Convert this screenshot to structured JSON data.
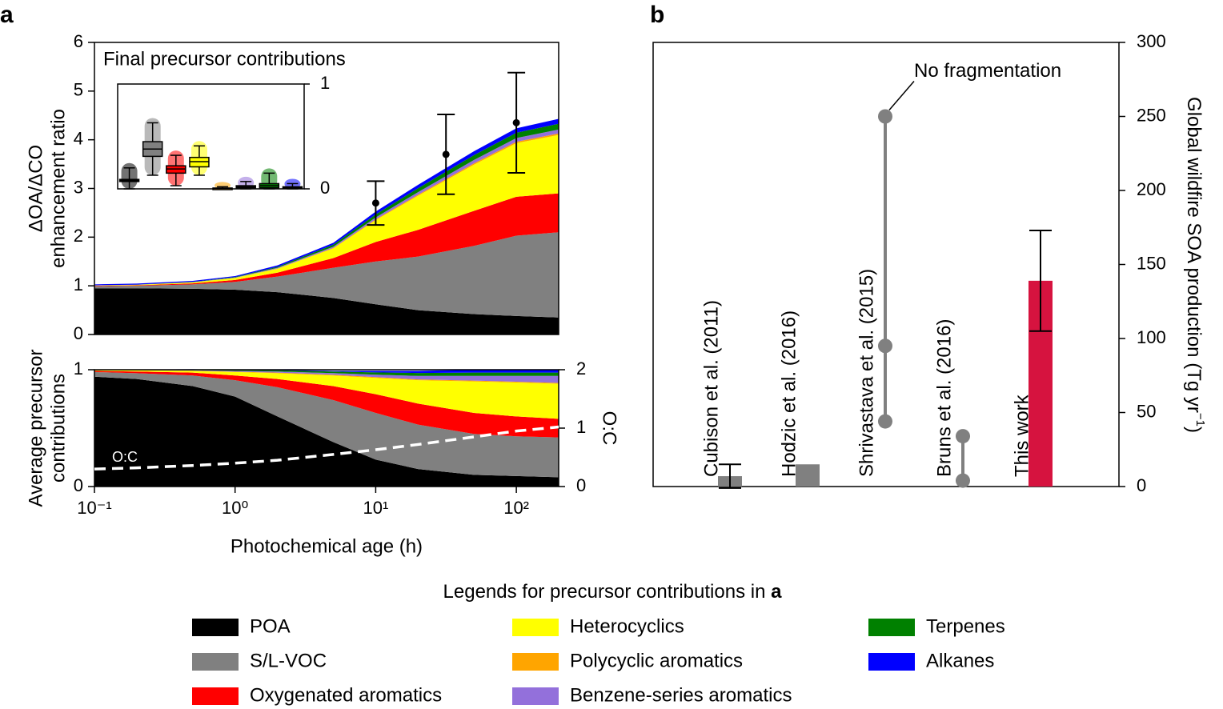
{
  "legend_title": "Legends for precursor contributions in",
  "legend_title_ref": "a",
  "chart_data": [
    {
      "type": "area",
      "panel_label": "a",
      "x": [
        0.1,
        0.2,
        0.5,
        1,
        2,
        5,
        10,
        20,
        50,
        100,
        200
      ],
      "xlim": [
        0.1,
        200
      ],
      "log_x": true,
      "ylim": [
        0,
        6
      ],
      "yticks": [
        0,
        1,
        2,
        3,
        4,
        5,
        6
      ],
      "y_label": [
        "ΔOA/ΔCO",
        "enhancement ratio"
      ],
      "series": [
        {
          "name": "POA",
          "color": "#000000",
          "values": [
            0.95,
            0.95,
            0.94,
            0.92,
            0.87,
            0.75,
            0.62,
            0.5,
            0.42,
            0.38,
            0.35
          ]
        },
        {
          "name": "S/L-VOC",
          "color": "#808080",
          "values": [
            0.04,
            0.05,
            0.09,
            0.16,
            0.32,
            0.62,
            0.88,
            1.1,
            1.4,
            1.65,
            1.75
          ]
        },
        {
          "name": "Oxygenated aromatics",
          "color": "#ff0000",
          "values": [
            0.01,
            0.01,
            0.02,
            0.04,
            0.08,
            0.2,
            0.4,
            0.55,
            0.72,
            0.8,
            0.8
          ]
        },
        {
          "name": "Heterocyclics",
          "color": "#ffff00",
          "values": [
            0.005,
            0.01,
            0.02,
            0.04,
            0.08,
            0.2,
            0.45,
            0.7,
            0.95,
            1.1,
            1.2
          ]
        },
        {
          "name": "Polycyclic aromatics",
          "color": "#ffa500",
          "values": [
            0.001,
            0.001,
            0.002,
            0.003,
            0.006,
            0.01,
            0.015,
            0.02,
            0.025,
            0.03,
            0.03
          ]
        },
        {
          "name": "Benzene-series aromatics",
          "color": "#9370db",
          "values": [
            0.002,
            0.002,
            0.004,
            0.008,
            0.014,
            0.025,
            0.04,
            0.055,
            0.07,
            0.075,
            0.08
          ]
        },
        {
          "name": "Terpenes",
          "color": "#008000",
          "values": [
            0.002,
            0.003,
            0.005,
            0.01,
            0.02,
            0.04,
            0.06,
            0.08,
            0.1,
            0.11,
            0.12
          ]
        },
        {
          "name": "Alkanes",
          "color": "#0000ff",
          "values": [
            0.02,
            0.02,
            0.02,
            0.02,
            0.03,
            0.04,
            0.06,
            0.07,
            0.08,
            0.09,
            0.1
          ]
        }
      ],
      "points": {
        "x": [
          10,
          31.6,
          100
        ],
        "values": [
          2.7,
          3.7,
          4.35
        ],
        "errors": [
          0.45,
          0.82,
          1.03
        ],
        "color": "#000000"
      }
    },
    {
      "type": "area",
      "x": [
        0.1,
        0.2,
        0.5,
        1,
        2,
        5,
        10,
        20,
        50,
        100,
        200
      ],
      "xlim": [
        0.1,
        200
      ],
      "log_x": true,
      "xticks": [
        {
          "value": 0.1,
          "label": "10⁻¹"
        },
        {
          "value": 1,
          "label": "10⁰"
        },
        {
          "value": 10,
          "label": "10¹"
        },
        {
          "value": 100,
          "label": "10²"
        }
      ],
      "x_label": "Photochemical age (h)",
      "ylim": [
        0,
        1
      ],
      "yticks": [
        0,
        1
      ],
      "y_label": [
        "Average precursor",
        "contributions"
      ],
      "series": [
        {
          "values": [
            0.94,
            0.92,
            0.86,
            0.77,
            0.6,
            0.38,
            0.23,
            0.15,
            0.1,
            0.09,
            0.08
          ]
        },
        {
          "values": [
            0.04,
            0.05,
            0.09,
            0.14,
            0.25,
            0.36,
            0.4,
            0.38,
            0.35,
            0.34,
            0.34
          ]
        },
        {
          "values": [
            0.01,
            0.015,
            0.025,
            0.04,
            0.07,
            0.12,
            0.16,
            0.18,
            0.18,
            0.17,
            0.16
          ]
        },
        {
          "values": [
            0.005,
            0.01,
            0.015,
            0.03,
            0.05,
            0.09,
            0.14,
            0.2,
            0.27,
            0.29,
            0.3
          ]
        },
        {
          "values": [
            0.001,
            0.001,
            0.002,
            0.003,
            0.005,
            0.006,
            0.007,
            0.007,
            0.007,
            0.007,
            0.007
          ]
        },
        {
          "values": [
            0.002,
            0.002,
            0.004,
            0.007,
            0.01,
            0.015,
            0.02,
            0.03,
            0.04,
            0.05,
            0.06
          ]
        },
        {
          "values": [
            0.002,
            0.002,
            0.004,
            0.006,
            0.01,
            0.014,
            0.02,
            0.025,
            0.028,
            0.028,
            0.028
          ]
        },
        {
          "values": [
            0.002,
            0.002,
            0.004,
            0.004,
            0.005,
            0.005,
            0.013,
            0.018,
            0.025,
            0.025,
            0.025
          ]
        }
      ],
      "line": {
        "name": "O:C",
        "axis": "y2",
        "color": "#ffffff",
        "dashed": true,
        "values": [
          0.3,
          0.32,
          0.36,
          0.4,
          0.45,
          0.55,
          0.63,
          0.72,
          0.85,
          0.95,
          1.02
        ]
      },
      "y2lim": [
        0,
        2
      ],
      "y2ticks": [
        0,
        1,
        2
      ],
      "y2_label": "O:C"
    },
    {
      "type": "box",
      "title": "Final precursor contributions",
      "ylim": [
        0,
        1
      ],
      "yticks": [
        0,
        1
      ],
      "boxes": [
        {
          "median": 0.08,
          "q1": 0.07,
          "q3": 0.09,
          "low": 0.0,
          "high": 0.2
        },
        {
          "median": 0.38,
          "q1": 0.31,
          "q3": 0.45,
          "low": 0.13,
          "high": 0.63
        },
        {
          "median": 0.19,
          "q1": 0.15,
          "q3": 0.22,
          "low": 0.03,
          "high": 0.32
        },
        {
          "median": 0.26,
          "q1": 0.21,
          "q3": 0.3,
          "low": 0.13,
          "high": 0.41
        },
        {
          "median": 0.005,
          "q1": 0.002,
          "q3": 0.008,
          "low": 0.0,
          "high": 0.02
        },
        {
          "median": 0.02,
          "q1": 0.01,
          "q3": 0.03,
          "low": 0.0,
          "high": 0.07
        },
        {
          "median": 0.03,
          "q1": 0.01,
          "q3": 0.05,
          "low": 0.0,
          "high": 0.15
        },
        {
          "median": 0.01,
          "q1": 0.005,
          "q3": 0.02,
          "low": 0.0,
          "high": 0.05
        }
      ]
    },
    {
      "type": "bar",
      "panel_label": "b",
      "categories": [
        "Cubison et al. (2011)",
        "Hodzic et al. (2016)",
        "Shrivastava et al. (2015)",
        "Bruns et al. (2016)",
        "This work"
      ],
      "values": [
        7,
        15,
        null,
        null,
        139
      ],
      "errors": [
        8,
        null,
        null,
        null,
        34
      ],
      "bar_colors": [
        "#808080",
        "#808080",
        null,
        null,
        "#d6133f"
      ],
      "ranges": [
        null,
        null,
        [
          44,
          95,
          250
        ],
        [
          4,
          34
        ],
        null
      ],
      "range_color": "#808080",
      "annotation": "No fragmentation",
      "ylim": [
        0,
        300
      ],
      "yticks": [
        0,
        50,
        100,
        150,
        200,
        250,
        300
      ],
      "y_label": {
        "text": "Global wildfire SOA production (Tg yr",
        "superscript": "−1",
        "end": ")"
      }
    }
  ]
}
